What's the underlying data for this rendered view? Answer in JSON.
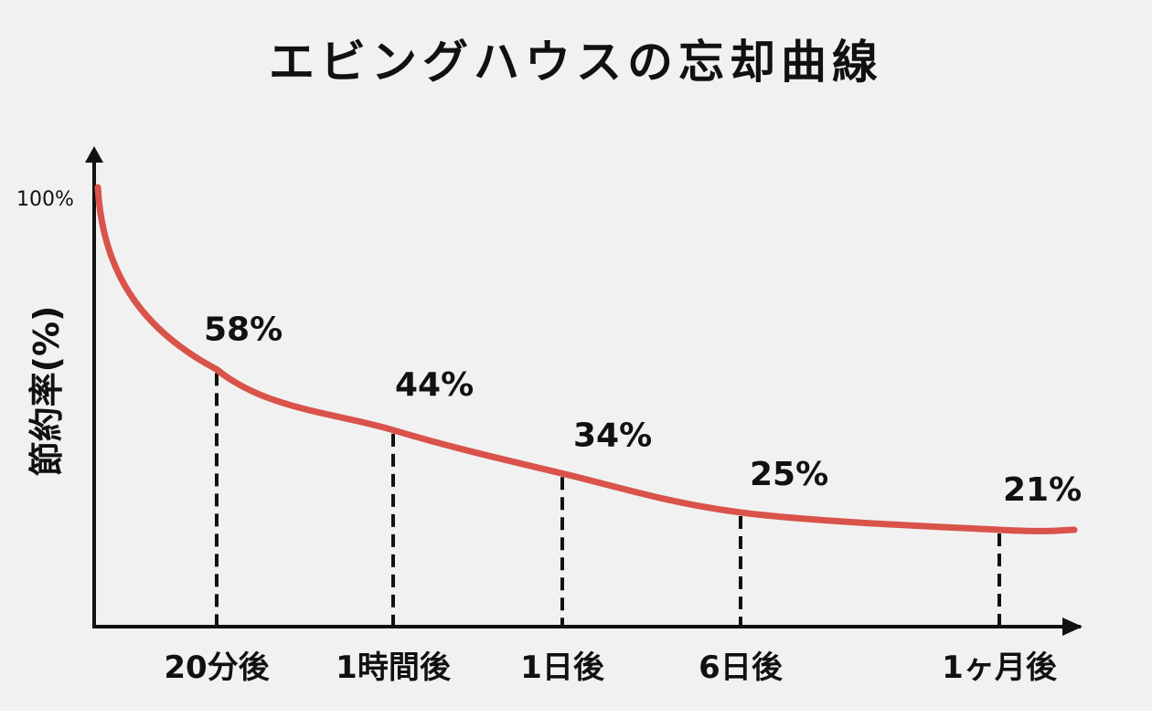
{
  "chart_data": {
    "type": "line",
    "title": "エビングハウスの忘却曲線",
    "ylabel": "節約率(%)",
    "xlabel": "",
    "y_tick_label": "100%",
    "ylim": [
      0,
      100
    ],
    "categories": [
      "20分後",
      "1時間後",
      "1日後",
      "6日後",
      "1ヶ月後"
    ],
    "values": [
      58,
      44,
      34,
      25,
      21
    ],
    "value_labels": [
      "58%",
      "44%",
      "34%",
      "25%",
      "21%"
    ],
    "start_value": 100,
    "grid": false,
    "legend": "none",
    "curve_color": "#d9534a",
    "axis_color": "#111111",
    "background": "#f1f1f1"
  }
}
